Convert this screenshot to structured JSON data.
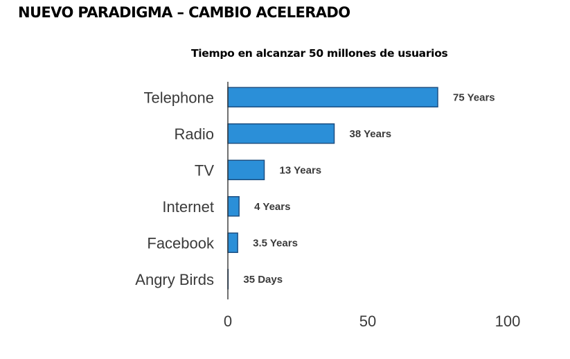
{
  "slide": {
    "title": "NUEVO PARADIGMA – CAMBIO ACELERADO"
  },
  "chart_data": {
    "type": "bar",
    "orientation": "horizontal",
    "title": "Tiempo en alcanzar 50 millones de usuarios",
    "xlabel": "",
    "ylabel": "",
    "categories": [
      "Telephone",
      "Radio",
      "TV",
      "Internet",
      "Facebook",
      "Angry Birds"
    ],
    "values": [
      75,
      38,
      13,
      4,
      3.5,
      0.096
    ],
    "value_labels": [
      "75 Years",
      "38 Years",
      "13 Years",
      "4 Years",
      "3.5 Years",
      "35 Days"
    ],
    "xlim": [
      0,
      100
    ],
    "xticks": [
      0,
      50,
      100
    ],
    "xtick_labels": [
      "0",
      "50",
      "100"
    ],
    "bar_color": "#2b8fd8",
    "bar_edge_color": "#1d4f82",
    "grid": false,
    "legend": "none"
  }
}
